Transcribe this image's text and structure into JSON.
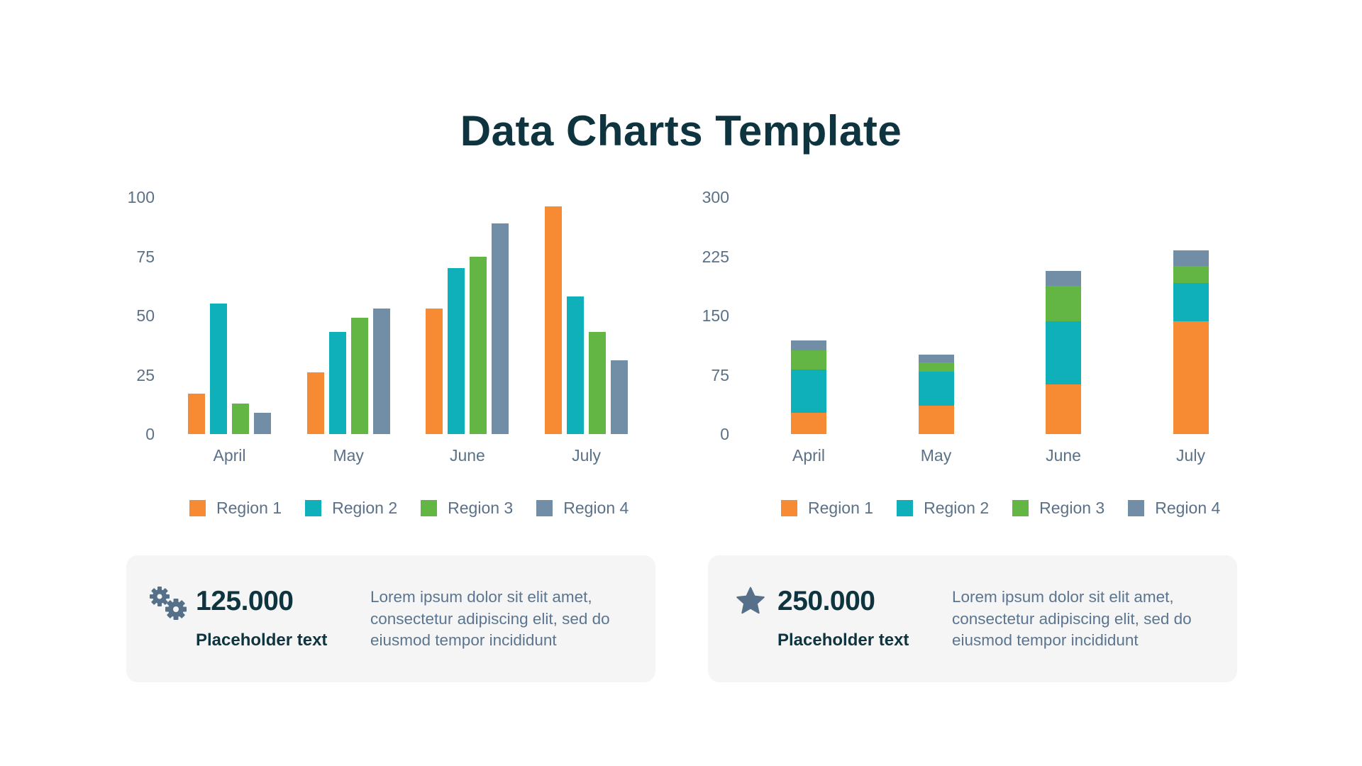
{
  "title": "Data Charts Template",
  "colors": {
    "region1": "#f68b33",
    "region2": "#0fb0b9",
    "region3": "#63b644",
    "region4": "#728ea6",
    "title": "#0e3440",
    "axis_text": "#5b7188",
    "card_bg": "#f5f5f5"
  },
  "chart_data": [
    {
      "type": "bar",
      "title": "",
      "xlabel": "",
      "ylabel": "",
      "categories": [
        "April",
        "May",
        "June",
        "July"
      ],
      "series": [
        {
          "name": "Region 1",
          "color": "#f68b33",
          "values": [
            17,
            26,
            53,
            96
          ]
        },
        {
          "name": "Region 2",
          "color": "#0fb0b9",
          "values": [
            55,
            43,
            70,
            58
          ]
        },
        {
          "name": "Region 3",
          "color": "#63b644",
          "values": [
            13,
            49,
            75,
            43
          ]
        },
        {
          "name": "Region 4",
          "color": "#728ea6",
          "values": [
            9,
            53,
            89,
            31
          ]
        }
      ],
      "ylim": [
        0,
        100
      ],
      "yticks": [
        "0",
        "25",
        "50",
        "75",
        "100"
      ],
      "grid": false,
      "legend_position": "bottom",
      "stacked": false
    },
    {
      "type": "bar",
      "title": "",
      "xlabel": "",
      "ylabel": "",
      "categories": [
        "April",
        "May",
        "June",
        "July"
      ],
      "series": [
        {
          "name": "Region 1",
          "color": "#f68b33",
          "values": [
            27,
            36,
            63,
            143
          ]
        },
        {
          "name": "Region 2",
          "color": "#0fb0b9",
          "values": [
            55,
            43,
            80,
            48
          ]
        },
        {
          "name": "Region 3",
          "color": "#63b644",
          "values": [
            24,
            12,
            45,
            22
          ]
        },
        {
          "name": "Region 4",
          "color": "#728ea6",
          "values": [
            13,
            10,
            19,
            20
          ]
        }
      ],
      "ylim": [
        0,
        300
      ],
      "yticks": [
        "0",
        "75",
        "150",
        "225",
        "300"
      ],
      "grid": false,
      "legend_position": "bottom",
      "stacked": true
    }
  ],
  "legend": [
    "Region 1",
    "Region 2",
    "Region 3",
    "Region 4"
  ],
  "cards": [
    {
      "icon": "gears-icon",
      "value": "125.000",
      "label": "Placeholder text",
      "description": "Lorem ipsum dolor sit elit amet, consectetur adipiscing elit, sed do eiusmod tempor incididunt"
    },
    {
      "icon": "star-icon",
      "value": "250.000",
      "label": "Placeholder text",
      "description": "Lorem ipsum dolor sit elit amet, consectetur adipiscing elit, sed do eiusmod tempor incididunt"
    }
  ]
}
